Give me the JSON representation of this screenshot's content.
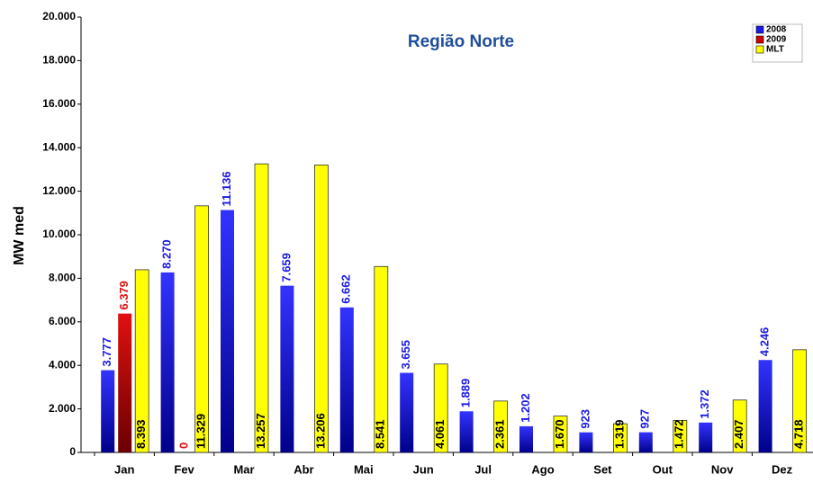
{
  "chart_data": {
    "type": "bar",
    "title": "Região Norte",
    "y_label": "MW med",
    "categories": [
      "Jan",
      "Fev",
      "Mar",
      "Abr",
      "Mai",
      "Jun",
      "Jul",
      "Ago",
      "Set",
      "Out",
      "Nov",
      "Dez"
    ],
    "series": [
      {
        "name": "2008",
        "color": "#1a1ae6",
        "values": [
          3777,
          8270,
          11136,
          7659,
          6662,
          3655,
          1889,
          1202,
          923,
          927,
          1372,
          4246
        ],
        "value_labels": [
          "3.777",
          "8.270",
          "11.136",
          "7.659",
          "6.662",
          "3.655",
          "1.889",
          "1.202",
          "923",
          "927",
          "1.372",
          "4.246"
        ]
      },
      {
        "name": "2009",
        "color": "#cc0000",
        "values": [
          6379,
          0,
          null,
          null,
          null,
          null,
          null,
          null,
          null,
          null,
          null,
          null
        ],
        "value_labels": [
          "6.379",
          "0",
          null,
          null,
          null,
          null,
          null,
          null,
          null,
          null,
          null,
          null
        ]
      },
      {
        "name": "MLT",
        "color": "#ffff00",
        "values": [
          8393,
          11329,
          13257,
          13206,
          8541,
          4061,
          2361,
          1670,
          1319,
          1472,
          2407,
          4718
        ],
        "value_labels": [
          "8.393",
          "11.329",
          "13.257",
          "13.206",
          "8.541",
          "4.061",
          "2.361",
          "1.670",
          "1.319",
          "1.472",
          "2.407",
          "4.718"
        ]
      }
    ],
    "ylim": [
      0,
      20000
    ],
    "yticks": [
      0,
      {
        "value": 2000,
        "label": "2.000"
      },
      {
        "value": 4000,
        "label": "4.000"
      },
      {
        "value": 6000,
        "label": "6.000"
      },
      {
        "value": 8000,
        "label": "8.000"
      },
      {
        "value": 10000,
        "label": "10.000"
      },
      {
        "value": 12000,
        "label": "12.000"
      },
      {
        "value": 14000,
        "label": "14.000"
      },
      {
        "value": 16000,
        "label": "16.000"
      },
      {
        "value": 18000,
        "label": "18.000"
      },
      {
        "value": 20000,
        "label": "20.000"
      }
    ],
    "legend": "top-right"
  }
}
